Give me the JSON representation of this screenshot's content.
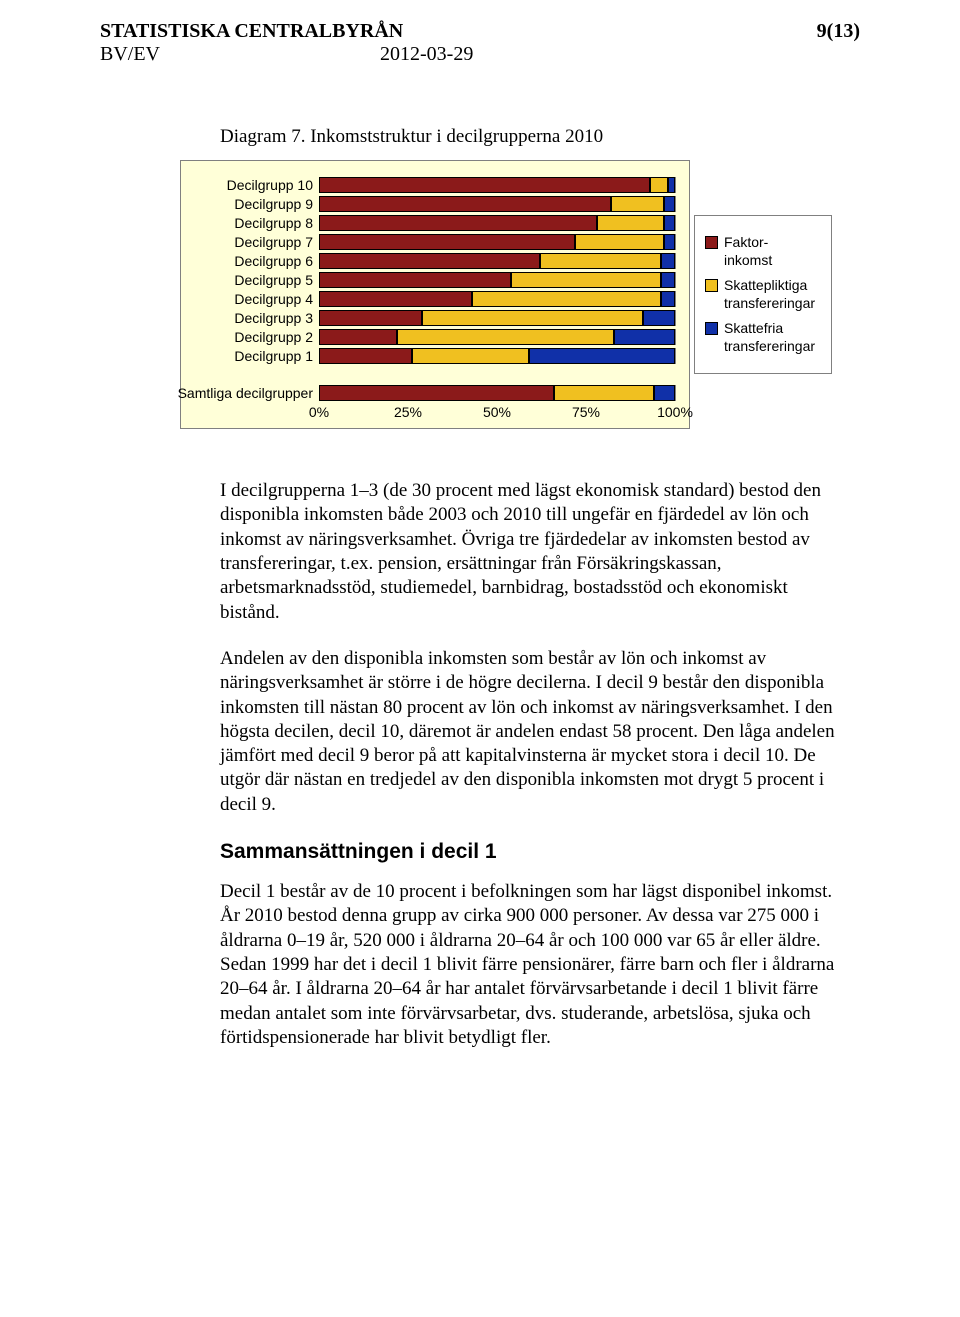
{
  "header": {
    "org": "STATISTISKA CENTRALBYRÅN",
    "page_num": "9(13)",
    "dept": "BV/EV",
    "date": "2012-03-29"
  },
  "diagram": {
    "caption": "Diagram 7. Inkomststruktur i decilgrupperna 2010",
    "background_color": "#ffffd8",
    "grid_color": "#808080",
    "label_fontsize": 14,
    "axis": {
      "ticks": [
        "0%",
        "25%",
        "50%",
        "75%",
        "100%"
      ],
      "positions_pct": [
        0,
        25,
        50,
        75,
        100
      ]
    },
    "series": [
      {
        "name": "Faktorinkomst",
        "key": "faktor",
        "color": "#8b1a1a"
      },
      {
        "name": "Skattepliktiga transfereringar",
        "key": "skattepliktiga",
        "color": "#f0c020"
      },
      {
        "name": "Skattefria transfereringar",
        "key": "skattefria",
        "color": "#1030a8"
      }
    ],
    "rows": [
      {
        "label": "Decilgrupp 10",
        "values": {
          "faktor": 93,
          "skattepliktiga": 5,
          "skattefria": 2
        }
      },
      {
        "label": "Decilgrupp 9",
        "values": {
          "faktor": 82,
          "skattepliktiga": 15,
          "skattefria": 3
        }
      },
      {
        "label": "Decilgrupp 8",
        "values": {
          "faktor": 78,
          "skattepliktiga": 19,
          "skattefria": 3
        }
      },
      {
        "label": "Decilgrupp 7",
        "values": {
          "faktor": 72,
          "skattepliktiga": 25,
          "skattefria": 3
        }
      },
      {
        "label": "Decilgrupp 6",
        "values": {
          "faktor": 62,
          "skattepliktiga": 34,
          "skattefria": 4
        }
      },
      {
        "label": "Decilgrupp 5",
        "values": {
          "faktor": 54,
          "skattepliktiga": 42,
          "skattefria": 4
        }
      },
      {
        "label": "Decilgrupp 4",
        "values": {
          "faktor": 43,
          "skattepliktiga": 53,
          "skattefria": 4
        }
      },
      {
        "label": "Decilgrupp 3",
        "values": {
          "faktor": 29,
          "skattepliktiga": 62,
          "skattefria": 9
        }
      },
      {
        "label": "Decilgrupp 2",
        "values": {
          "faktor": 22,
          "skattepliktiga": 61,
          "skattefria": 17
        }
      },
      {
        "label": "Decilgrupp 1",
        "values": {
          "faktor": 26,
          "skattepliktiga": 33,
          "skattefria": 41
        }
      }
    ],
    "summary_row": {
      "label": "Samtliga decilgrupper",
      "values": {
        "faktor": 66,
        "skattepliktiga": 28,
        "skattefria": 6
      }
    }
  },
  "paragraphs": {
    "p1": "I decilgrupperna 1–3 (de 30 procent med lägst ekonomisk standard) bestod den disponibla inkomsten både 2003 och 2010 till ungefär en fjärdedel av lön och inkomst av näringsverksamhet. Övriga tre fjärdedelar av inkomsten bestod av transfereringar, t.ex. pension, ersättningar från Försäkringskassan, arbetsmarknadsstöd, studiemedel, barnbidrag, bostadsstöd och ekonomiskt bistånd.",
    "p2": "Andelen av den disponibla inkomsten som består av lön och inkomst av näringsverksamhet är större i de högre decilerna. I decil 9 består den disponibla inkomsten till nästan 80 procent av lön och inkomst av näringsverksamhet. I den högsta decilen, decil 10, däremot är andelen endast 58 procent. Den låga andelen jämfört med decil 9 beror på att kapitalvinsterna är mycket stora i decil 10. De utgör där nästan en tredjedel av den disponibla inkomsten mot drygt 5 procent i decil 9.",
    "heading": "Sammansättningen i decil 1",
    "p3": "Decil 1 består av de 10 procent i befolkningen som har lägst disponibel inkomst. År 2010 bestod denna grupp av cirka 900 000 personer. Av dessa var 275 000 i åldrarna 0–19 år, 520 000 i åldrarna 20–64 år och 100 000 var 65 år eller äldre. Sedan 1999 har det i decil 1 blivit färre pensionärer, färre barn och fler i åldrarna 20–64 år. I åldrarna 20–64 år har antalet förvärvsarbetande i decil 1 blivit färre medan antalet som inte förvärvsarbetar, dvs. studerande, arbetslösa, sjuka och förtidspensionerade har blivit betydligt fler."
  }
}
